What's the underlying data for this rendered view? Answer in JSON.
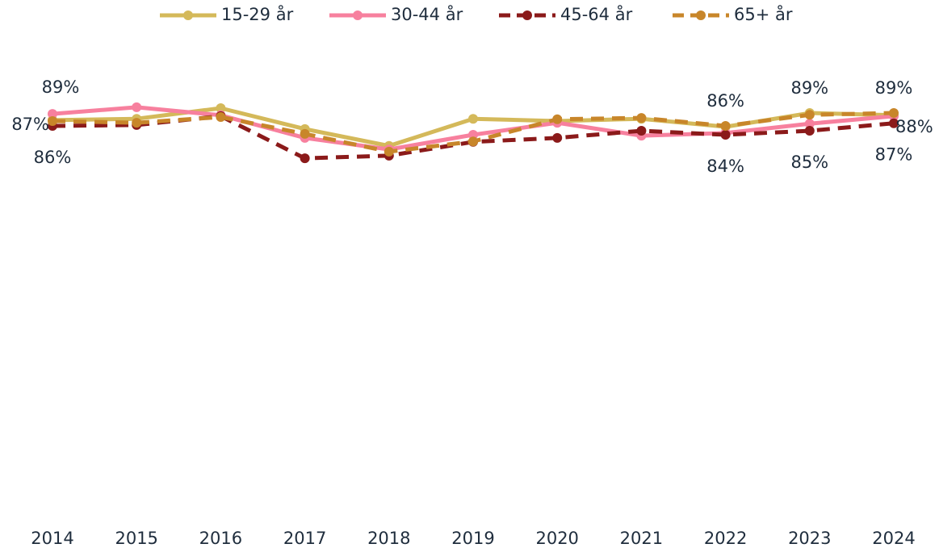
{
  "chart_data": {
    "type": "line",
    "x": [
      "2014",
      "2015",
      "2016",
      "2017",
      "2018",
      "2019",
      "2020",
      "2021",
      "2022",
      "2023",
      "2024"
    ],
    "ylim": [
      0,
      100
    ],
    "series": [
      {
        "name": "15-29 år",
        "color": "#d4b95a",
        "dashed": false,
        "values": [
          87.3,
          87.6,
          90.0,
          85.3,
          81.5,
          87.6,
          87.1,
          87.6,
          85.8,
          88.9,
          88.4
        ],
        "value_labels": [
          "87%",
          null,
          null,
          null,
          null,
          null,
          null,
          null,
          null,
          "89%",
          null
        ]
      },
      {
        "name": "30-44 år",
        "color": "#f7809e",
        "dashed": false,
        "values": [
          88.7,
          90.2,
          88.4,
          83.3,
          80.7,
          84.0,
          86.7,
          83.8,
          84.4,
          86.5,
          88.2
        ],
        "value_labels": [
          "89%",
          null,
          null,
          null,
          null,
          null,
          null,
          null,
          null,
          null,
          "88%"
        ]
      },
      {
        "name": "45-64 år",
        "color": "#8b1a1a",
        "dashed": true,
        "values": [
          86.0,
          86.2,
          88.2,
          78.7,
          79.3,
          82.4,
          83.3,
          84.9,
          84.0,
          84.9,
          86.6
        ],
        "value_labels": [
          "86%",
          null,
          null,
          null,
          null,
          null,
          null,
          null,
          "84%",
          "85%",
          "87%"
        ]
      },
      {
        "name": "65+ år",
        "color": "#c8862a",
        "dashed": true,
        "values": [
          87.1,
          86.7,
          88.0,
          84.2,
          80.2,
          82.5,
          87.5,
          87.8,
          86.0,
          88.5,
          88.9
        ],
        "value_labels": [
          null,
          null,
          null,
          null,
          null,
          null,
          null,
          null,
          "86%",
          null,
          "89%"
        ]
      }
    ]
  }
}
